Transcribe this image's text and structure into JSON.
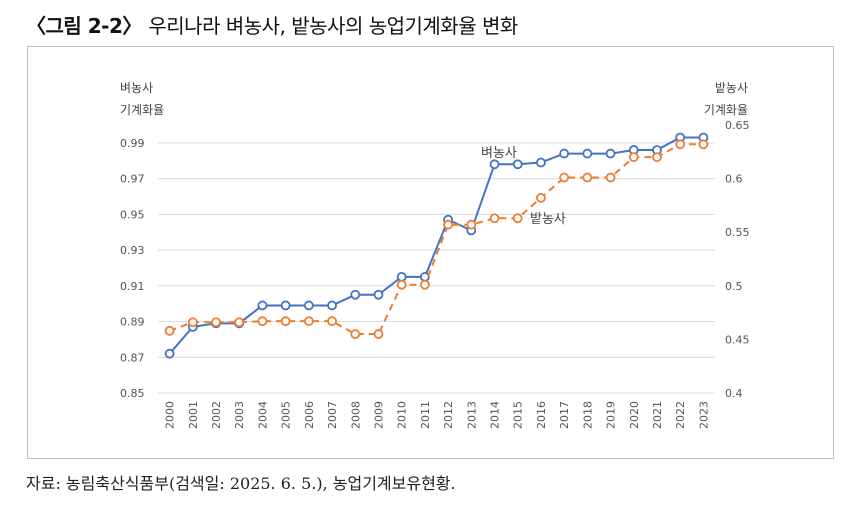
{
  "figure": {
    "label": "〈그림 2-2〉",
    "title": "우리나라 벼농사, 밭농사의 농업기계화율 변화",
    "source": "자료: 농림축산식품부(검색일: 2025. 6. 5.), 농업기계보유현황."
  },
  "chart_data": {
    "type": "line",
    "x": [
      "2000",
      "2001",
      "2002",
      "2003",
      "2004",
      "2005",
      "2006",
      "2007",
      "2008",
      "2009",
      "2010",
      "2011",
      "2012",
      "2013",
      "2014",
      "2015",
      "2016",
      "2017",
      "2018",
      "2019",
      "2020",
      "2021",
      "2022",
      "2023"
    ],
    "left_axis": {
      "label_line1": "벼농사",
      "label_line2": "기계화율",
      "range": [
        0.85,
        1.0
      ],
      "ticks": [
        "0.85",
        "0.87",
        "0.89",
        "0.91",
        "0.93",
        "0.95",
        "0.97",
        "0.99"
      ]
    },
    "right_axis": {
      "label_line1": "밭농사",
      "label_line2": "기계화율",
      "range": [
        0.4,
        0.65
      ],
      "ticks": [
        "0.4",
        "0.45",
        "0.5",
        "0.55",
        "0.6",
        "0.65"
      ]
    },
    "series": [
      {
        "name": "벼농사",
        "axis": "left",
        "color": "#4472c4",
        "style": "solid",
        "values": [
          0.872,
          0.887,
          0.889,
          0.889,
          0.899,
          0.899,
          0.899,
          0.899,
          0.905,
          0.905,
          0.915,
          0.915,
          0.947,
          0.941,
          0.978,
          0.978,
          0.979,
          0.984,
          0.984,
          0.984,
          0.986,
          0.986,
          0.993,
          0.993
        ]
      },
      {
        "name": "밭농사",
        "axis": "right",
        "color": "#ed7d31",
        "style": "dashed",
        "values": [
          0.458,
          0.466,
          0.466,
          0.466,
          0.467,
          0.467,
          0.467,
          0.467,
          0.455,
          0.455,
          0.501,
          0.501,
          0.557,
          0.557,
          0.563,
          0.563,
          0.582,
          0.601,
          0.601,
          0.601,
          0.62,
          0.62,
          0.632,
          0.632
        ]
      }
    ],
    "grid": true,
    "legend": "inline labels"
  }
}
